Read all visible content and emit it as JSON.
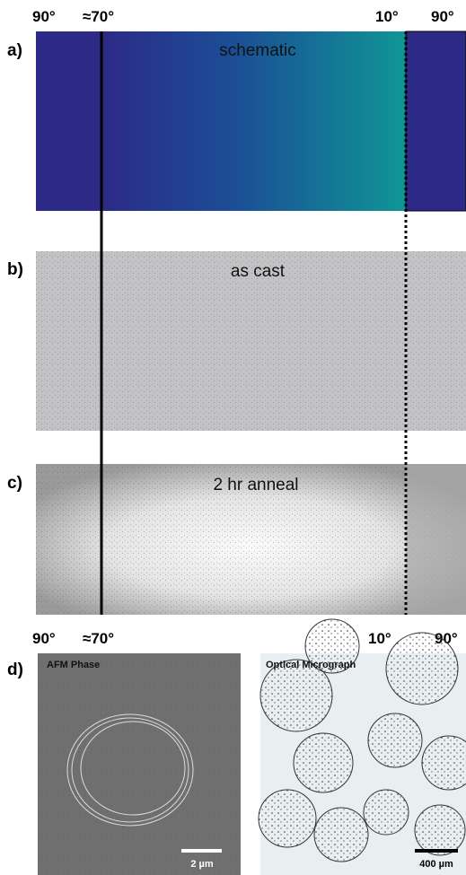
{
  "top_labels": [
    "90°",
    "≈70°",
    "10°",
    "90°"
  ],
  "panels": [
    {
      "label": "a)",
      "title": "schematic"
    },
    {
      "label": "b)",
      "title": "as cast"
    },
    {
      "label": "c)",
      "title": "2 hr anneal"
    }
  ],
  "bottom_labels": [
    "90°",
    "≈70°",
    "10°",
    "90°"
  ],
  "panel_d": {
    "label": "d)",
    "afm": {
      "title": "AFM Phase",
      "scale": "2 µm"
    },
    "optical": {
      "title": "Optical Micrograph",
      "scale": "400 µm"
    }
  }
}
